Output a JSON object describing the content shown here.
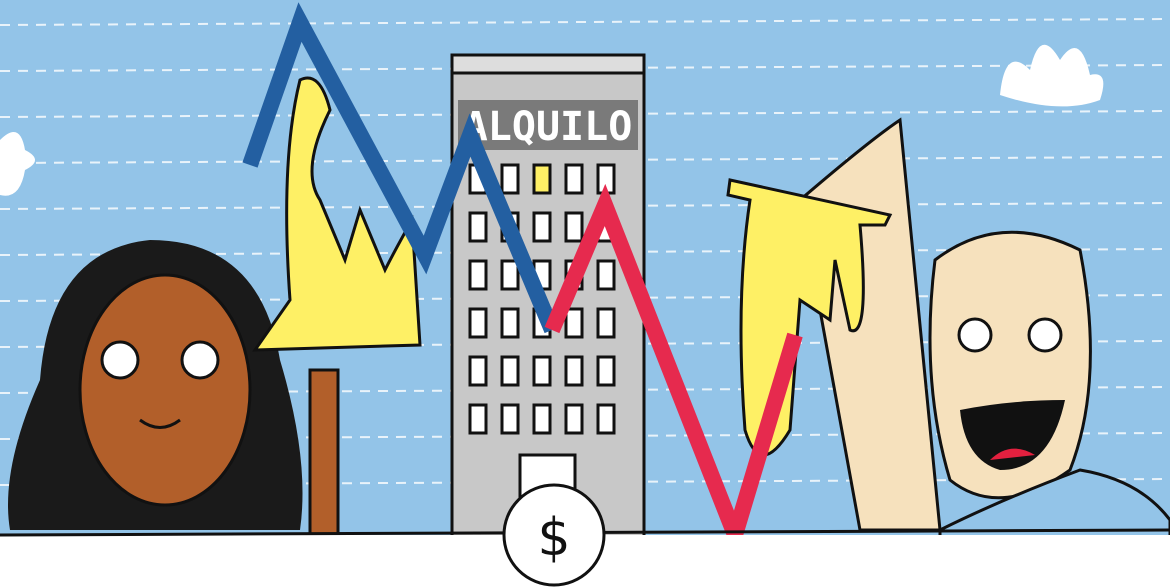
{
  "sign": "ALQUILO",
  "coin": "$"
}
